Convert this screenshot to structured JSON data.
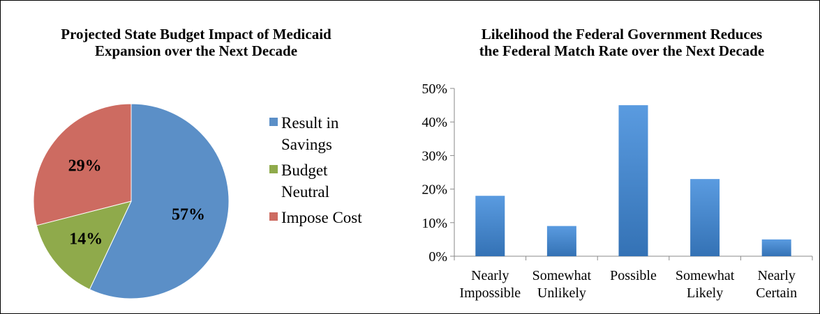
{
  "colors": {
    "savings": "#5b8fc7",
    "neutral": "#8faa4b",
    "cost": "#cd6b61",
    "bar_light": "#5a9be0",
    "bar_dark": "#3472b5",
    "axis": "#8a8a8a"
  },
  "chart_data": [
    {
      "type": "pie",
      "title": [
        "Projected State Budget Impact of Medicaid",
        "Expansion over the Next Decade"
      ],
      "slices": [
        {
          "label_lines": [
            "Result in",
            "Savings"
          ],
          "value": 57,
          "display": "57%",
          "color": "#5b8fc7"
        },
        {
          "label_lines": [
            "Budget",
            "Neutral"
          ],
          "value": 14,
          "display": "14%",
          "color": "#8faa4b"
        },
        {
          "label_lines": [
            "Impose Cost"
          ],
          "value": 29,
          "display": "29%",
          "color": "#cd6b61"
        }
      ],
      "legend_position": "right"
    },
    {
      "type": "bar",
      "title": [
        "Likelihood the Federal Government Reduces",
        "the Federal Match Rate over the Next Decade"
      ],
      "categories": [
        [
          "Nearly",
          "Impossible"
        ],
        [
          "Somewhat",
          "Unlikely"
        ],
        [
          "Possible"
        ],
        [
          "Somewhat",
          "Likely"
        ],
        [
          "Nearly",
          "Certain"
        ]
      ],
      "values": [
        18,
        9,
        45,
        23,
        5
      ],
      "ylim": [
        0,
        50
      ],
      "yticks": [
        0,
        10,
        20,
        30,
        40,
        50
      ],
      "ytick_labels": [
        "0%",
        "10%",
        "20%",
        "30%",
        "40%",
        "50%"
      ],
      "grid": false
    }
  ]
}
